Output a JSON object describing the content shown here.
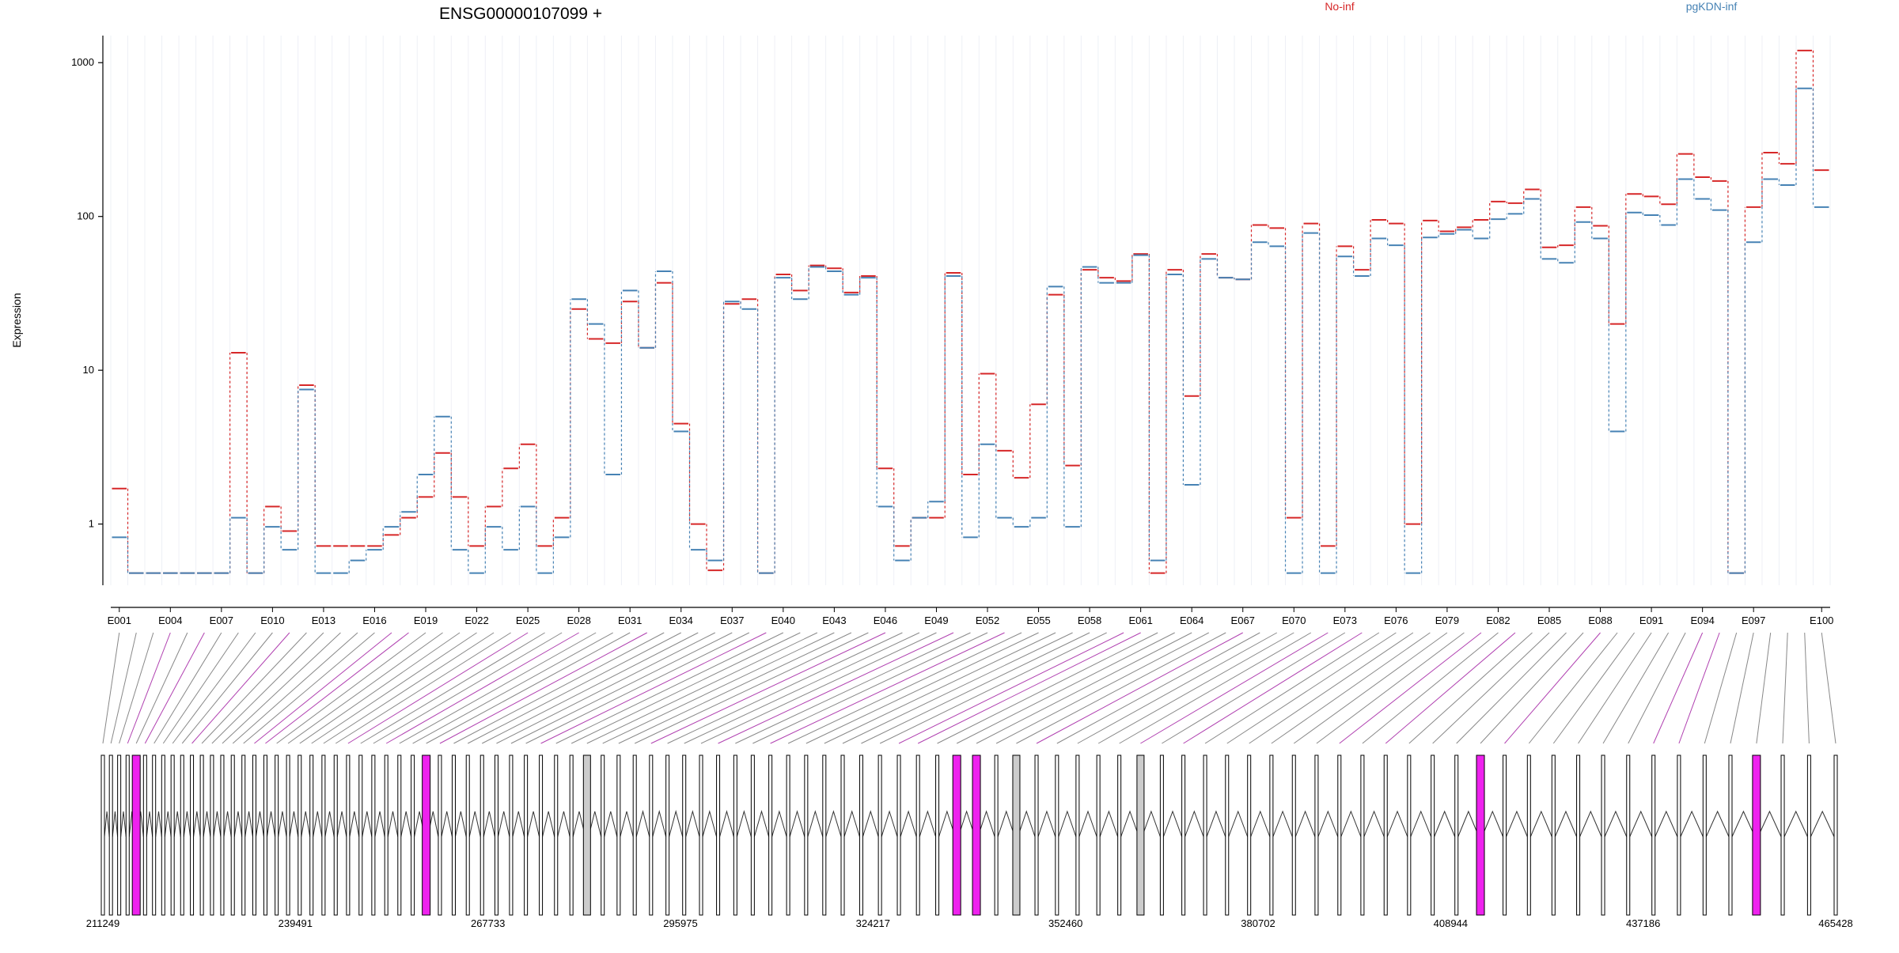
{
  "chart_data": {
    "type": "line",
    "title": "ENSG00000107099 +",
    "ylabel": "Expression",
    "xlabel": "",
    "yscale": "log",
    "ylim": [
      0.4,
      1500
    ],
    "yticks": [
      "1",
      "10",
      "100",
      "1000"
    ],
    "ytick_values": [
      1,
      10,
      100,
      1000
    ],
    "grid": "vertical",
    "legend_placement": "top",
    "x_tick_labels": [
      "E001",
      "E004",
      "E007",
      "E010",
      "E013",
      "E016",
      "E019",
      "E022",
      "E025",
      "E028",
      "E031",
      "E034",
      "E037",
      "E040",
      "E043",
      "E046",
      "E049",
      "E052",
      "E055",
      "E058",
      "E061",
      "E064",
      "E067",
      "E070",
      "E073",
      "E076",
      "E079",
      "E082",
      "E085",
      "E088",
      "E091",
      "E094",
      "E097",
      "E100"
    ],
    "series": [
      {
        "name": "No-inf",
        "color": "#d62728",
        "values": [
          1.7,
          0.48,
          0.48,
          0.48,
          0.48,
          0.48,
          0.48,
          13,
          0.48,
          1.3,
          0.9,
          8,
          0.72,
          0.72,
          0.72,
          0.72,
          0.85,
          1.1,
          1.5,
          2.9,
          1.5,
          0.72,
          1.3,
          2.3,
          3.3,
          0.72,
          1.1,
          25,
          16,
          15,
          28,
          14,
          37,
          4.5,
          1,
          0.5,
          27,
          29,
          0.48,
          42,
          33,
          48,
          46,
          32,
          41,
          2.3,
          0.72,
          1.1,
          1.1,
          43,
          2.1,
          9.5,
          3,
          2,
          6,
          31,
          2.4,
          45,
          40,
          38,
          57,
          0.48,
          45,
          6.8,
          57,
          40,
          39,
          88,
          84,
          1.1,
          90,
          0.72,
          64,
          45,
          95,
          90,
          1,
          94,
          80,
          85,
          95,
          125,
          122,
          150,
          63,
          65,
          115,
          87,
          20,
          140,
          135,
          120,
          255,
          180,
          170,
          0.48,
          115,
          260,
          220,
          1200,
          200
        ]
      },
      {
        "name": "pgKDN-inf",
        "color": "#4682b4",
        "values": [
          0.82,
          0.48,
          0.48,
          0.48,
          0.48,
          0.48,
          0.48,
          1.1,
          0.48,
          0.96,
          0.68,
          7.5,
          0.48,
          0.48,
          0.58,
          0.68,
          0.96,
          1.2,
          2.1,
          5,
          0.68,
          0.48,
          0.96,
          0.68,
          1.3,
          0.48,
          0.82,
          29,
          20,
          2.1,
          33,
          14,
          44,
          4,
          0.68,
          0.58,
          28,
          25,
          0.48,
          40,
          29,
          47,
          44,
          31,
          40,
          1.3,
          0.58,
          1.1,
          1.4,
          41,
          0.82,
          3.3,
          1.1,
          0.96,
          1.1,
          35,
          0.96,
          47,
          37,
          37,
          56,
          0.58,
          42,
          1.8,
          53,
          40,
          39,
          68,
          64,
          0.48,
          78,
          0.48,
          55,
          41,
          72,
          65,
          0.48,
          73,
          77,
          82,
          72,
          96,
          104,
          130,
          53,
          50,
          92,
          72,
          4,
          106,
          102,
          88,
          175,
          130,
          110,
          0.48,
          68,
          175,
          160,
          680,
          115
        ]
      }
    ],
    "genomic_coords": [
      "211249",
      "239491",
      "267733",
      "295975",
      "324217",
      "352460",
      "380702",
      "408944",
      "437186",
      "465428"
    ]
  }
}
